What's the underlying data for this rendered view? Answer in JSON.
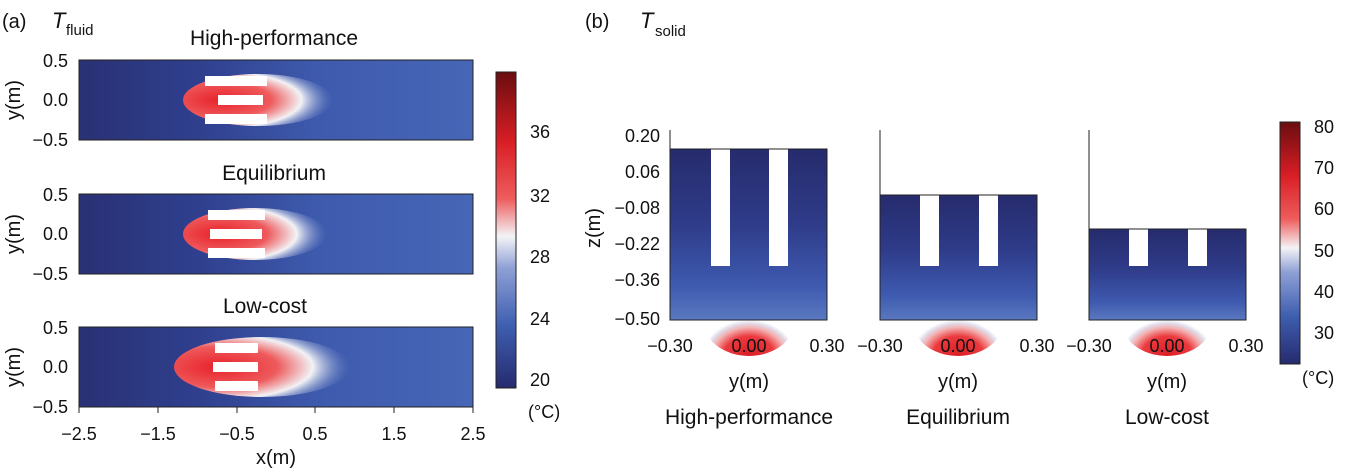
{
  "panel_a": {
    "label": "(a)",
    "var": "T",
    "sub": "fluid",
    "rows": [
      {
        "title": "High-performance"
      },
      {
        "title": "Equilibrium"
      },
      {
        "title": "Low-cost"
      }
    ],
    "ylabel": "y(m)",
    "yticks": [
      "0.5",
      "0.0",
      "−0.5"
    ],
    "xlabel": "x(m)",
    "xticks": [
      "−2.5",
      "−1.5",
      "−0.5",
      "0.5",
      "1.5",
      "2.5"
    ],
    "colorbar": {
      "ticks": [
        "36",
        "32",
        "28",
        "24",
        "20"
      ],
      "unit": "(°C)"
    }
  },
  "panel_b": {
    "label": "(b)",
    "var": "T",
    "sub": "solid",
    "zlabel": "z(m)",
    "zticks": [
      "0.20",
      "0.06",
      "−0.08",
      "−0.22",
      "−0.36",
      "−0.50"
    ],
    "ylabel": "y(m)",
    "yticks": [
      "−0.30",
      "0.00",
      "0.30"
    ],
    "cases": [
      {
        "title": "High-performance"
      },
      {
        "title": "Equilibrium"
      },
      {
        "title": "Low-cost"
      }
    ],
    "colorbar": {
      "ticks": [
        "80",
        "70",
        "60",
        "50",
        "40",
        "30"
      ],
      "unit": "(°C)"
    }
  },
  "colors": {
    "dark_blue": "#262a6e",
    "mid_blue": "#3f5fb0",
    "white": "#f4f4f4",
    "red": "#e8222a",
    "dark_red": "#6a0d10"
  }
}
